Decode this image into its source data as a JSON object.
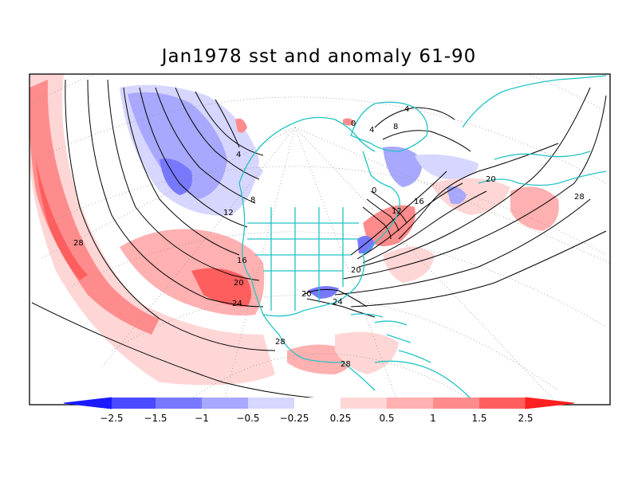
{
  "title": "Jan1978 sst and anomaly 61-90",
  "colors": {
    "coast": "#22c4c4",
    "contour": "#000000",
    "neg_2_5": "#1a1aff",
    "neg_1_5": "#4a4aff",
    "neg_1": "#7878ff",
    "neg_0_5": "#a8a8ff",
    "neg_0_25": "#d6d6ff",
    "pos_0_25": "#ffd6d6",
    "pos_0_5": "#ffb0b0",
    "pos_1": "#ff8c8c",
    "pos_1_5": "#ff5e5e",
    "pos_2_5": "#ff2020"
  },
  "colorbar": {
    "labels": [
      "-2.5",
      "-1.5",
      "-1",
      "-0.5",
      "-0.25",
      "0.25",
      "0.5",
      "1",
      "1.5",
      "2.5"
    ]
  },
  "contour_labels": [
    "28",
    "4",
    "8",
    "12",
    "16",
    "20",
    "24",
    "28",
    "28",
    "0",
    "4",
    "8",
    "0",
    "4",
    "12",
    "16",
    "20",
    "20",
    "24",
    "20",
    "28"
  ]
}
